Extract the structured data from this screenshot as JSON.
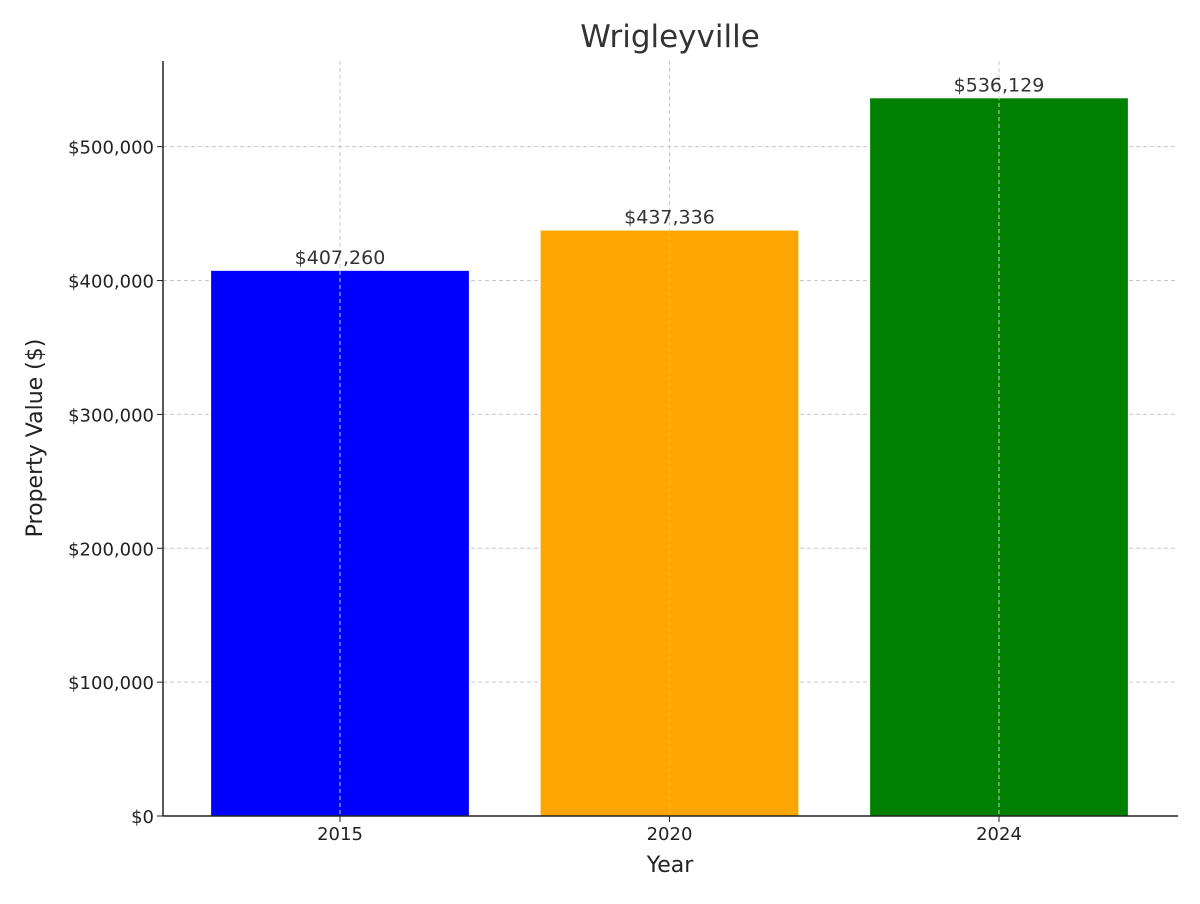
{
  "chart_data": {
    "type": "bar",
    "title": "Wrigleyville",
    "xlabel": "Year",
    "ylabel": "Property Value ($)",
    "categories": [
      "2015",
      "2020",
      "2024"
    ],
    "values": [
      407260,
      437336,
      536129
    ],
    "value_labels": [
      "$407,260",
      "$437,336",
      "$536,129"
    ],
    "bar_colors": [
      "#0000ff",
      "#ffa500",
      "#008000"
    ],
    "ylim": [
      0,
      564000
    ],
    "yticks": [
      0,
      100000,
      200000,
      300000,
      400000,
      500000
    ],
    "ytick_labels": [
      "$0",
      "$100,000",
      "$200,000",
      "$300,000",
      "$400,000",
      "$500,000"
    ],
    "grid": true,
    "legend": "none"
  }
}
